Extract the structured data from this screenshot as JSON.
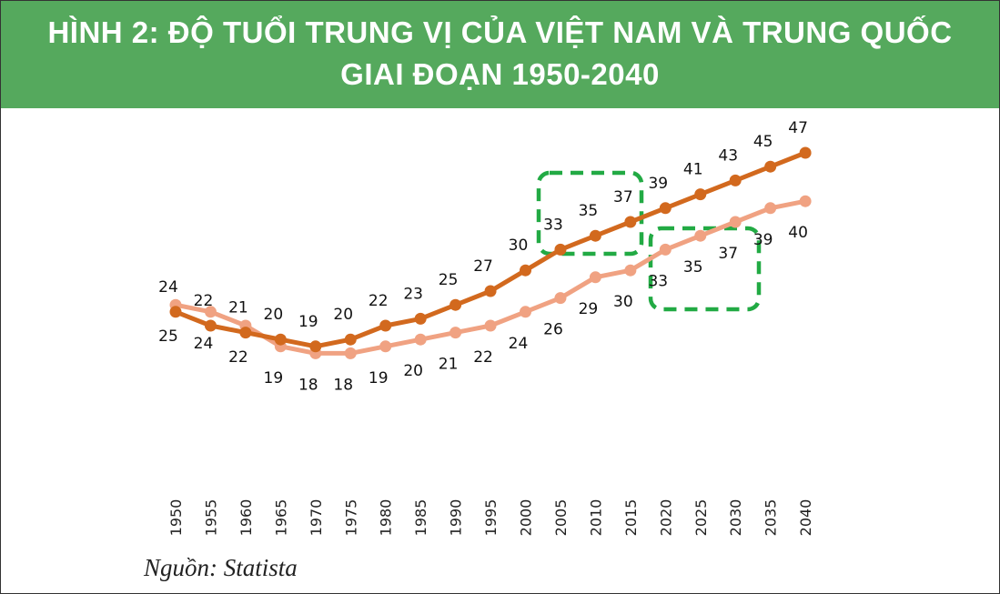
{
  "header": {
    "line1": "HÌNH 2: ĐỘ TUỔI TRUNG VỊ CỦA VIỆT NAM VÀ TRUNG QUỐC",
    "line2": "GIAI ĐOẠN 1950-2040"
  },
  "source": "Nguồn: Statista",
  "colors": {
    "header": "#55a95d",
    "series_dark": "#d2691e",
    "series_light": "#f0a282",
    "highlight": "#22aa44"
  },
  "chart_data": {
    "type": "line",
    "title": "HÌNH 2: ĐỘ TUỔI TRUNG VỊ CỦA VIỆT NAM VÀ TRUNG QUỐC GIAI ĐOẠN 1950-2040",
    "categories": [
      "1950",
      "1955",
      "1960",
      "1965",
      "1970",
      "1975",
      "1980",
      "1985",
      "1990",
      "1995",
      "2000",
      "2005",
      "2010",
      "2015",
      "2020",
      "2025",
      "2030",
      "2035",
      "2040"
    ],
    "series": [
      {
        "color": "#d2691e",
        "values": [
          24,
          22,
          21,
          20,
          19,
          20,
          22,
          23,
          25,
          27,
          30,
          33,
          35,
          37,
          39,
          41,
          43,
          45,
          47
        ]
      },
      {
        "color": "#f0a282",
        "values": [
          25,
          24,
          22,
          19,
          18,
          18,
          19,
          20,
          21,
          22,
          24,
          26,
          29,
          30,
          33,
          35,
          37,
          39,
          40
        ]
      }
    ],
    "data_labels": true,
    "grid": false,
    "legend": "none",
    "xlabel": "",
    "ylabel": "",
    "annotations": [
      "dashed-box around dark series 2005-2015",
      "dashed-box around light series 2020-2030"
    ]
  }
}
